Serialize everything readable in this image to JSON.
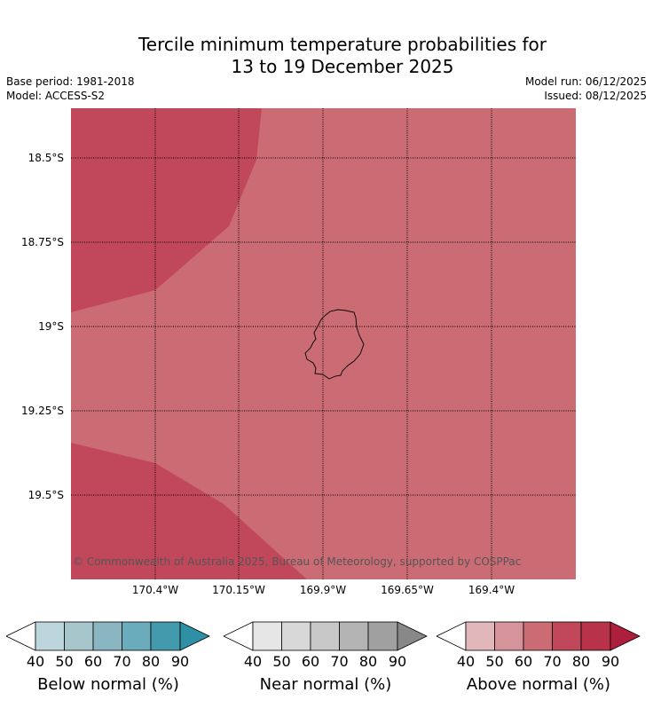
{
  "title": {
    "line1": "Tercile minimum temperature probabilities for",
    "line2": "13 to 19 December 2025"
  },
  "meta": {
    "base_period": "Base period: 1981-2018",
    "model": "Model: ACCESS-S2",
    "model_run": "Model run: 06/12/2025",
    "issued": "Issued: 08/12/2025"
  },
  "map": {
    "copyright": "© Commonwealth of Australia 2025, Bureau of Meteorology, supported by COSPPac",
    "lat_labels": [
      "18.5°S",
      "18.75°S",
      "19°S",
      "19.25°S",
      "19.5°S"
    ],
    "lon_labels": [
      "170.4°W",
      "170.15°W",
      "169.9°W",
      "169.65°W",
      "169.4°W"
    ],
    "colors": {
      "above_70_80": "#c0485a",
      "above_60_70": "#cb6b74",
      "coast": "#000000"
    }
  },
  "colorbars": [
    {
      "label": "Below normal (%)",
      "ticks": [
        "40",
        "50",
        "60",
        "70",
        "80",
        "90"
      ],
      "colors": [
        "#ffffff",
        "#bdd5dc",
        "#a6c6cc",
        "#8ab6c2",
        "#6aacbc",
        "#429aac",
        "#2f8fa5"
      ]
    },
    {
      "label": "Near normal (%)",
      "ticks": [
        "40",
        "50",
        "60",
        "70",
        "80",
        "90"
      ],
      "colors": [
        "#ffffff",
        "#e6e6e6",
        "#d8d8d8",
        "#c8c8c8",
        "#b4b4b4",
        "#a0a0a0",
        "#888888"
      ]
    },
    {
      "label": "Above normal (%)",
      "ticks": [
        "40",
        "50",
        "60",
        "70",
        "80",
        "90"
      ],
      "colors": [
        "#ffffff",
        "#e1b7bc",
        "#d59499",
        "#cb6b74",
        "#c0485a",
        "#b83249",
        "#ad1f3c"
      ]
    }
  ]
}
